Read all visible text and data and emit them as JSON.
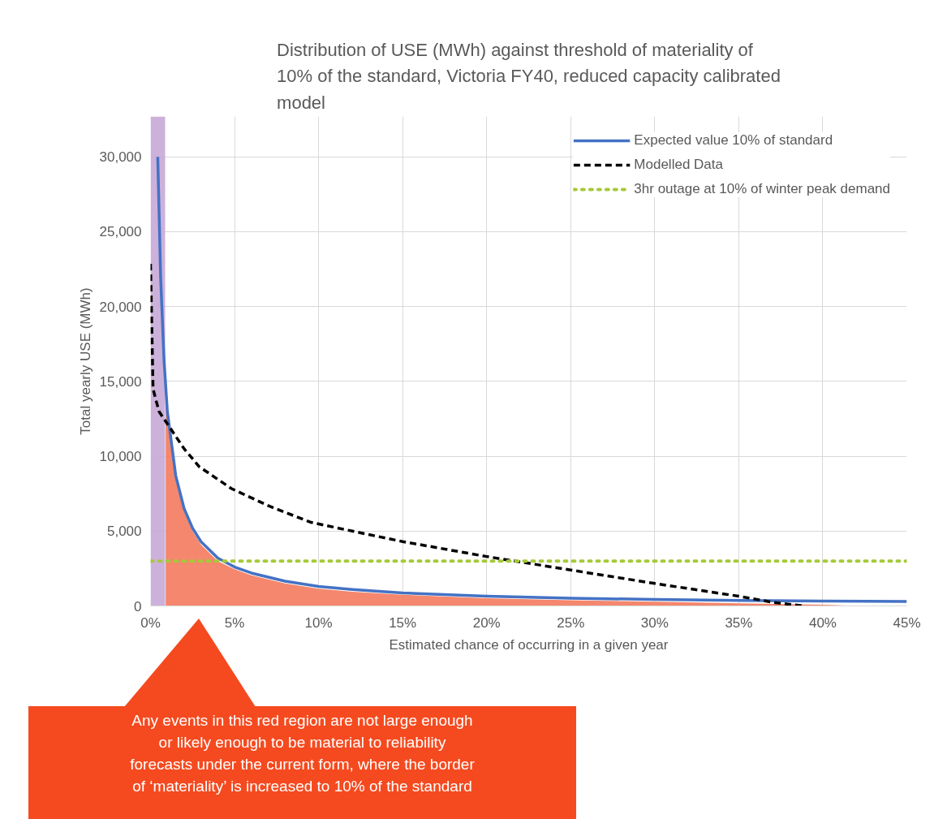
{
  "chart_data": {
    "type": "line",
    "title": "Distribution of USE (MWh) against threshold of materiality of 10% of the standard, Victoria FY40, reduced capacity calibrated model",
    "xlabel": "Estimated chance of occurring in a given year",
    "ylabel": "Total yearly USE (MWh)",
    "series": [
      {
        "type": "area",
        "color": "#f4876d",
        "x": [
          0.9,
          1,
          1.5,
          2,
          2.5,
          3,
          4,
          5,
          6,
          8,
          10,
          12,
          15,
          20,
          25,
          30,
          35,
          40,
          42
        ],
        "values": [
          14000,
          12800,
          8500,
          6300,
          5000,
          4100,
          3000,
          2450,
          2050,
          1500,
          1150,
          950,
          750,
          520,
          380,
          280,
          180,
          80,
          0
        ]
      },
      {
        "name": "Expected value 10% of standard",
        "color": "#4472c4",
        "line_style": "solid",
        "x": [
          0.43,
          0.6,
          0.8,
          1,
          1.5,
          2,
          2.5,
          3,
          4,
          5,
          6,
          8,
          10,
          12,
          15,
          20,
          25,
          30,
          35,
          40,
          45
        ],
        "values": [
          30000,
          22000,
          16500,
          13000,
          8700,
          6500,
          5200,
          4300,
          3200,
          2600,
          2200,
          1650,
          1300,
          1100,
          870,
          650,
          520,
          430,
          370,
          330,
          300
        ]
      },
      {
        "name": "Modelled Data",
        "color": "#000000",
        "line_style": "dashed",
        "x": [
          0,
          0.15,
          0.5,
          1.1,
          2,
          2.9,
          4.8,
          7,
          9.5,
          12,
          15,
          20,
          25,
          30,
          35,
          37,
          38.8
        ],
        "values": [
          22850,
          14500,
          13000,
          12000,
          10500,
          9300,
          7850,
          6700,
          5600,
          5000,
          4300,
          3300,
          2400,
          1500,
          650,
          250,
          0
        ]
      },
      {
        "name": "3hr outage at 10% of winter peak demand",
        "color": "#a5c93a",
        "line_style": "dotted",
        "x": [
          0,
          45
        ],
        "values": [
          3000,
          3000
        ]
      }
    ],
    "bands": [
      {
        "axis": "x",
        "from": 0,
        "to": 0.87,
        "color": "#c7a9d6"
      }
    ],
    "xlim": [
      0,
      45
    ],
    "ylim": [
      0,
      32700
    ],
    "xticks": [
      {
        "value": 0,
        "label": "0%"
      },
      {
        "value": 5,
        "label": "5%"
      },
      {
        "value": 10,
        "label": "10%"
      },
      {
        "value": 15,
        "label": "15%"
      },
      {
        "value": 20,
        "label": "20%"
      },
      {
        "value": 25,
        "label": "25%"
      },
      {
        "value": 30,
        "label": "30%"
      },
      {
        "value": 35,
        "label": "35%"
      },
      {
        "value": 40,
        "label": "40%"
      },
      {
        "value": 45,
        "label": "45%"
      }
    ],
    "yticks": [
      {
        "value": 0,
        "label": "0"
      },
      {
        "value": 5000,
        "label": "5,000"
      },
      {
        "value": 10000,
        "label": "10,000"
      },
      {
        "value": 15000,
        "label": "15,000"
      },
      {
        "value": 20000,
        "label": "20,000"
      },
      {
        "value": 25000,
        "label": "25,000"
      },
      {
        "value": 30000,
        "label": "30,000"
      }
    ],
    "grid": true,
    "legend": "top right",
    "annotations": [
      "Any events in this red region are not large enough or likely enough to be material to reliability forecasts under the current form, where the border of ‘materiality’ is increased to 10% of the standard"
    ]
  }
}
